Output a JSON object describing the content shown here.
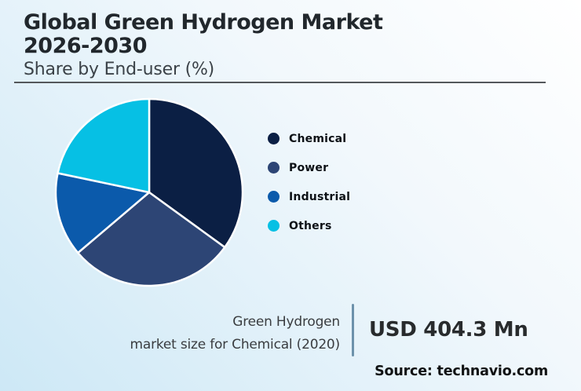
{
  "header": {
    "title_line1": "Global Green Hydrogen Market",
    "title_line2": "2026-2030",
    "subtitle": "Share by End-user (%)"
  },
  "chart_data": {
    "type": "pie",
    "title": "Global Green Hydrogen Market 2026-2030 — Share by End-user (%)",
    "categories": [
      "Chemical",
      "Power",
      "Industrial",
      "Others"
    ],
    "values": [
      35,
      28.8,
      14.5,
      21.7
    ],
    "unit": "%",
    "colors": [
      "#0b1f44",
      "#2d4575",
      "#0b5aab",
      "#06c0e4"
    ],
    "start_angle_deg": 0,
    "direction": "clockwise",
    "slice_border_color": "#ffffff",
    "legend_position": "right",
    "data_labels_shown": false
  },
  "legend": {
    "items": [
      {
        "label": "Chemical",
        "color": "#0b1f44"
      },
      {
        "label": "Power",
        "color": "#2d4575"
      },
      {
        "label": "Industrial",
        "color": "#0b5aab"
      },
      {
        "label": "Others",
        "color": "#06c0e4"
      }
    ]
  },
  "annotation": {
    "label_line1": "Green Hydrogen",
    "label_line2": "market size for Chemical (2020)",
    "value": "USD 404.3 Mn",
    "divider_color": "#6d92ab"
  },
  "footer": {
    "source": "Source: technavio.com"
  }
}
